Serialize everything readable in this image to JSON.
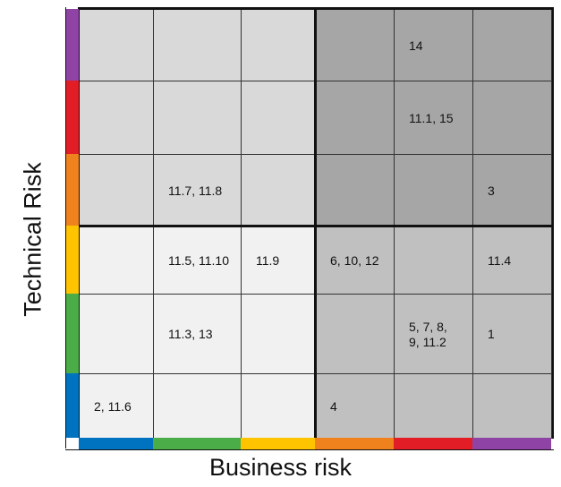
{
  "xlabel": "Business risk",
  "ylabel": "Technical Risk",
  "colors": {
    "light": "#f1f1f1",
    "mid": "#d9d9d9",
    "dark": "#a6a6a6",
    "medium_dark": "#c0c0c0"
  },
  "band_colors": [
    "#0073c0",
    "#4aad48",
    "#ffc400",
    "#f0821e",
    "#e31d25",
    "#8f43a5"
  ],
  "rows": [
    {
      "shade": "mid",
      "cells": [
        "",
        "",
        "",
        "",
        "14",
        ""
      ]
    },
    {
      "shade": "mid",
      "cells": [
        "",
        "",
        "",
        "",
        "11.1, 15",
        ""
      ]
    },
    {
      "shade": "mid",
      "cells": [
        "",
        "11.7, 11.8",
        "",
        "",
        "",
        "3"
      ]
    },
    {
      "shade": "light",
      "cells": [
        "",
        "11.5, 11.10",
        "11.9",
        "6, 10, 12",
        "",
        "11.4"
      ]
    },
    {
      "shade": "light",
      "cells": [
        "",
        "11.3, 13",
        "",
        "",
        "5, 7, 8,\n9, 11.2",
        "1"
      ]
    },
    {
      "shade": "light",
      "cells": [
        "2, 11.6",
        "",
        "",
        "4",
        "",
        ""
      ]
    }
  ]
}
